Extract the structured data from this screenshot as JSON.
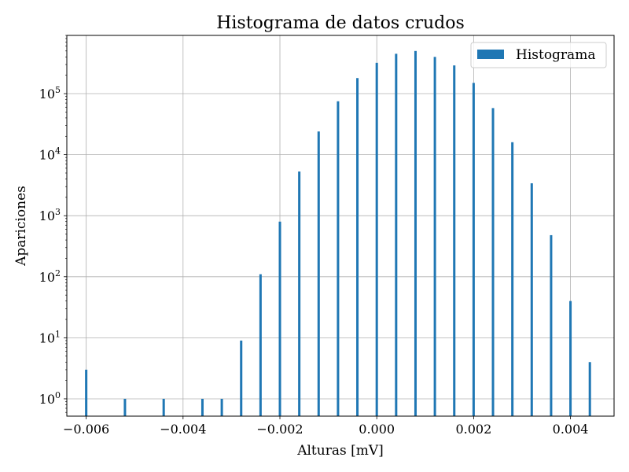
{
  "chart_data": {
    "type": "bar",
    "title": "Histograma de datos crudos",
    "xlabel": "Alturas [mV]",
    "ylabel": "Apariciones",
    "yscale": "log",
    "xlim": [
      -0.0064,
      0.0049
    ],
    "ylim": [
      0.52,
      900000
    ],
    "grid": true,
    "legend_position": "top-right",
    "xticks": [
      {
        "value": -0.006,
        "label": "−0.006"
      },
      {
        "value": -0.004,
        "label": "−0.004"
      },
      {
        "value": -0.002,
        "label": "−0.002"
      },
      {
        "value": 0.0,
        "label": "0.000"
      },
      {
        "value": 0.002,
        "label": "0.002"
      },
      {
        "value": 0.004,
        "label": "0.004"
      }
    ],
    "yticks": [
      {
        "value": 1,
        "base": "10",
        "exp": "0"
      },
      {
        "value": 10,
        "base": "10",
        "exp": "1"
      },
      {
        "value": 100,
        "base": "10",
        "exp": "2"
      },
      {
        "value": 1000,
        "base": "10",
        "exp": "3"
      },
      {
        "value": 10000,
        "base": "10",
        "exp": "4"
      },
      {
        "value": 100000,
        "base": "10",
        "exp": "5"
      }
    ],
    "series": [
      {
        "name": "Histograma",
        "color": "#1f77b4",
        "x": [
          -0.006,
          -0.0052,
          -0.0044,
          -0.0036,
          -0.0032,
          -0.0028,
          -0.0024,
          -0.002,
          -0.0016,
          -0.0012,
          -0.0008,
          -0.0004,
          0.0,
          0.0004,
          0.0008,
          0.0012,
          0.0016,
          0.002,
          0.0024,
          0.0028,
          0.0032,
          0.0036,
          0.004,
          0.0044
        ],
        "values": [
          3,
          1,
          1,
          1,
          1,
          9,
          110,
          800,
          5300,
          24000,
          75000,
          180000,
          320000,
          450000,
          500000,
          400000,
          290000,
          150000,
          58000,
          16000,
          3400,
          480,
          40,
          4
        ]
      }
    ]
  }
}
